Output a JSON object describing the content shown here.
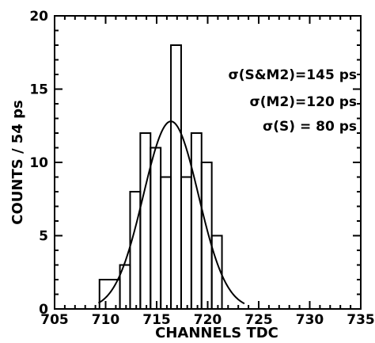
{
  "chart_data": {
    "type": "histogram",
    "title": "",
    "xlabel": "CHANNELS TDC",
    "ylabel": "COUNTS / 54 ps",
    "xlim": [
      705,
      735
    ],
    "ylim": [
      0,
      20
    ],
    "xticks": [
      705,
      710,
      715,
      720,
      725,
      730,
      735
    ],
    "yticks": [
      0,
      5,
      10,
      15,
      20
    ],
    "grid": false,
    "legend": "none",
    "bins": [
      {
        "x0": 709.4,
        "x1": 711.4,
        "count": 2
      },
      {
        "x0": 711.4,
        "x1": 712.4,
        "count": 3
      },
      {
        "x0": 712.4,
        "x1": 713.4,
        "count": 8
      },
      {
        "x0": 713.4,
        "x1": 714.4,
        "count": 12
      },
      {
        "x0": 714.4,
        "x1": 715.4,
        "count": 11
      },
      {
        "x0": 715.4,
        "x1": 716.4,
        "count": 9
      },
      {
        "x0": 716.4,
        "x1": 717.4,
        "count": 18
      },
      {
        "x0": 717.4,
        "x1": 718.4,
        "count": 9
      },
      {
        "x0": 718.4,
        "x1": 719.4,
        "count": 12
      },
      {
        "x0": 719.4,
        "x1": 720.4,
        "count": 10
      },
      {
        "x0": 720.4,
        "x1": 721.4,
        "count": 5
      },
      {
        "x0": 721.4,
        "x1": 722.4,
        "count": 0
      }
    ],
    "fit": {
      "type": "gaussian",
      "amplitude": 12.8,
      "mean": 716.4,
      "sigma": 2.7,
      "x_range": [
        709.3,
        723.6
      ]
    },
    "annotations": [
      "σ(S&M2)=145 ps",
      "σ(M2)=120 ps",
      "σ(S) = 80 ps"
    ]
  }
}
